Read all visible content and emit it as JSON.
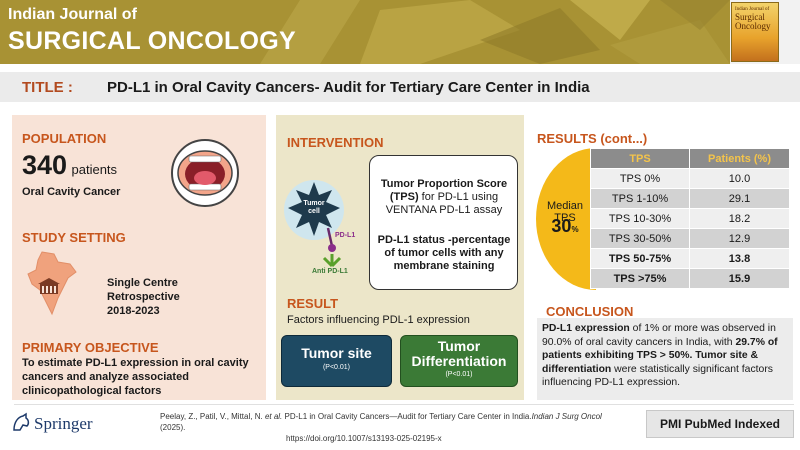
{
  "header": {
    "journal_line1": "Indian Journal of",
    "journal_line2": "SURGICAL ONCOLOGY",
    "cover_text1": "Indian Journal of",
    "cover_text2": "Surgical Oncology"
  },
  "title": {
    "label": "TITLE :",
    "text": "PD-L1 in Oral Cavity Cancers- Audit for Tertiary Care Center in India"
  },
  "population": {
    "heading": "POPULATION",
    "count": "340",
    "count_unit": "patients",
    "condition": "Oral Cavity Cancer"
  },
  "study_setting": {
    "heading": "STUDY SETTING",
    "lines": [
      "Single Centre",
      "Retrospective",
      "2018-2023"
    ]
  },
  "primary_objective": {
    "heading": "PRIMARY OBJECTIVE",
    "text": "To estimate PD-L1 expression in oral cavity cancers  and analyze associated clinicopathological factors"
  },
  "intervention": {
    "heading": "INTERVENTION",
    "tumor_label_1": "Tumor",
    "tumor_label_2": "cell",
    "pdl1_label": "PD-L1",
    "anti_label": "Anti PD-L1",
    "box_title": "Tumor Proportion Score (TPS)",
    "box_title_rest": " for PD-L1 using VENTANA PD-L1 assay",
    "box_status_bold": "PD-L1 status -percentage of tumor cells with any membrane staining"
  },
  "result": {
    "heading": "RESULT",
    "subtitle": "Factors influencing PDL-1 expression",
    "factors": [
      {
        "name": "Tumor site",
        "p": "(P<0.01)"
      },
      {
        "name": "Tumor Differentiation",
        "p": "(P<0.01)"
      }
    ]
  },
  "results_table": {
    "heading": "RESULTS (cont...)",
    "median_label": "Median TPS",
    "median_value": "30",
    "median_unit": "%",
    "columns": [
      "TPS",
      "Patients (%)"
    ],
    "rows": [
      [
        "TPS 0%",
        "10.0"
      ],
      [
        "TPS 1-10%",
        "29.1"
      ],
      [
        "TPS 10-30%",
        "18.2"
      ],
      [
        "TPS 30-50%",
        "12.9"
      ],
      [
        "TPS 50-75%",
        "13.8"
      ],
      [
        "TPS >75%",
        "15.9"
      ]
    ]
  },
  "conclusion": {
    "heading": "CONCLUSION",
    "p1_bold": "PD-L1 expression",
    "p1_rest": " of 1% or more was observed in 90.0% of oral cavity cancers in India, with ",
    "p2_bold": "29.7% of patients exhibiting TPS > 50%. Tumor site & differentiation",
    "p2_rest": " were statistically significant factors influencing PD-L1 expression."
  },
  "footer": {
    "publisher": "Springer",
    "citation_authors": "Peelay, Z., Patil, V., Mittal, N. ",
    "citation_etal": "et al.",
    "citation_title": " PD-L1 in Oral Cavity Cancers—Audit for Tertiary Care Center in India.",
    "citation_journal": "Indian J Surg Oncol",
    "citation_year": " (2025).",
    "citation_doi": "https://doi.org/10.1007/s13193-025-02195-x",
    "pubmed": "PMI PubMed Indexed"
  },
  "colors": {
    "header": "#a89234",
    "accent_orange": "#c7561d",
    "median_yellow": "#f4b919",
    "tumor_site": "#1e4a63",
    "tumor_diff": "#3b7a36"
  }
}
